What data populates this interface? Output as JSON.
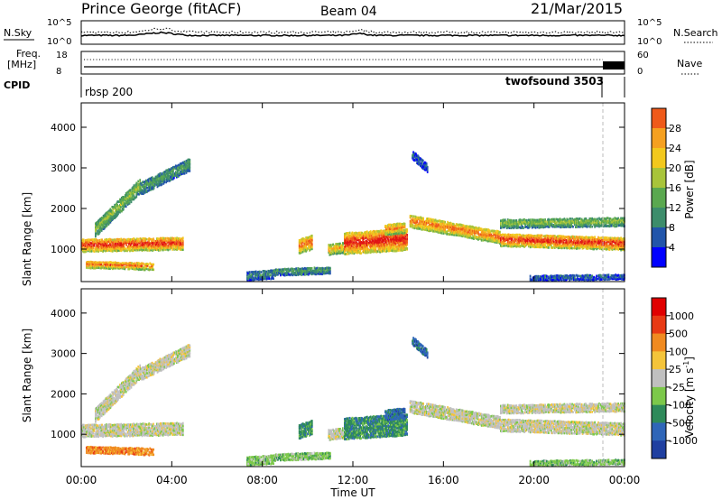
{
  "header": {
    "station": "Prince George (fitACF)",
    "beam": "Beam 04",
    "date": "21/Mar/2015"
  },
  "strip_panels": {
    "noise": {
      "left_label": "N.Sky",
      "right_label": "N.Search",
      "left_ticks": [
        "10^5",
        "10^0"
      ],
      "right_ticks": [
        "10^5",
        "10^0"
      ]
    },
    "freq": {
      "left_label_1": "Freq.",
      "left_label_2": "[MHz]",
      "right_label": "Nave",
      "left_ticks": [
        "18",
        "8"
      ],
      "right_ticks": [
        "60",
        "0"
      ]
    },
    "cpid": {
      "label": "CPID",
      "segments": [
        "rbsp 200",
        "twofsound 3503"
      ]
    }
  },
  "chart_data": [
    {
      "type": "heatmap",
      "title": "",
      "xlabel": "",
      "ylabel": "Slant Range [km]",
      "xlim": [
        0,
        24
      ],
      "ylim": [
        200,
        4600
      ],
      "y_ticks": [
        "1000",
        "2000",
        "3000",
        "4000"
      ],
      "colorbar": {
        "label": "Power [dB]",
        "tick_labels": [
          "28",
          "24",
          "20",
          "16",
          "12",
          "8",
          "4"
        ],
        "range": [
          0,
          30
        ],
        "colors": [
          "#0000ff",
          "#2255aa",
          "#3d8d6b",
          "#5aa84f",
          "#a8c43a",
          "#f2c81d",
          "#f5a020",
          "#ef5a1a",
          "#e11414"
        ]
      }
    },
    {
      "type": "heatmap",
      "title": "",
      "xlabel": "Time UT",
      "ylabel": "Slant Range [km]",
      "xlim": [
        0,
        24
      ],
      "ylim": [
        200,
        4600
      ],
      "y_ticks": [
        "1000",
        "2000",
        "3000",
        "4000"
      ],
      "x_ticks": [
        "00:00",
        "04:00",
        "08:00",
        "12:00",
        "16:00",
        "20:00",
        "00:00"
      ],
      "colorbar": {
        "label": "Velocity",
        "unit": "[m s",
        "unit_sup": "-1",
        "unit_end": "]",
        "tick_labels": [
          "1000",
          "500",
          "100",
          "25",
          "-25",
          "-100",
          "-500",
          "-1000"
        ],
        "colors": [
          "#1f3fa0",
          "#2f66b8",
          "#2e8a5a",
          "#7cc84a",
          "#c0c0c0",
          "#f4c43a",
          "#f08a20",
          "#e83a14",
          "#e00000"
        ]
      }
    }
  ]
}
